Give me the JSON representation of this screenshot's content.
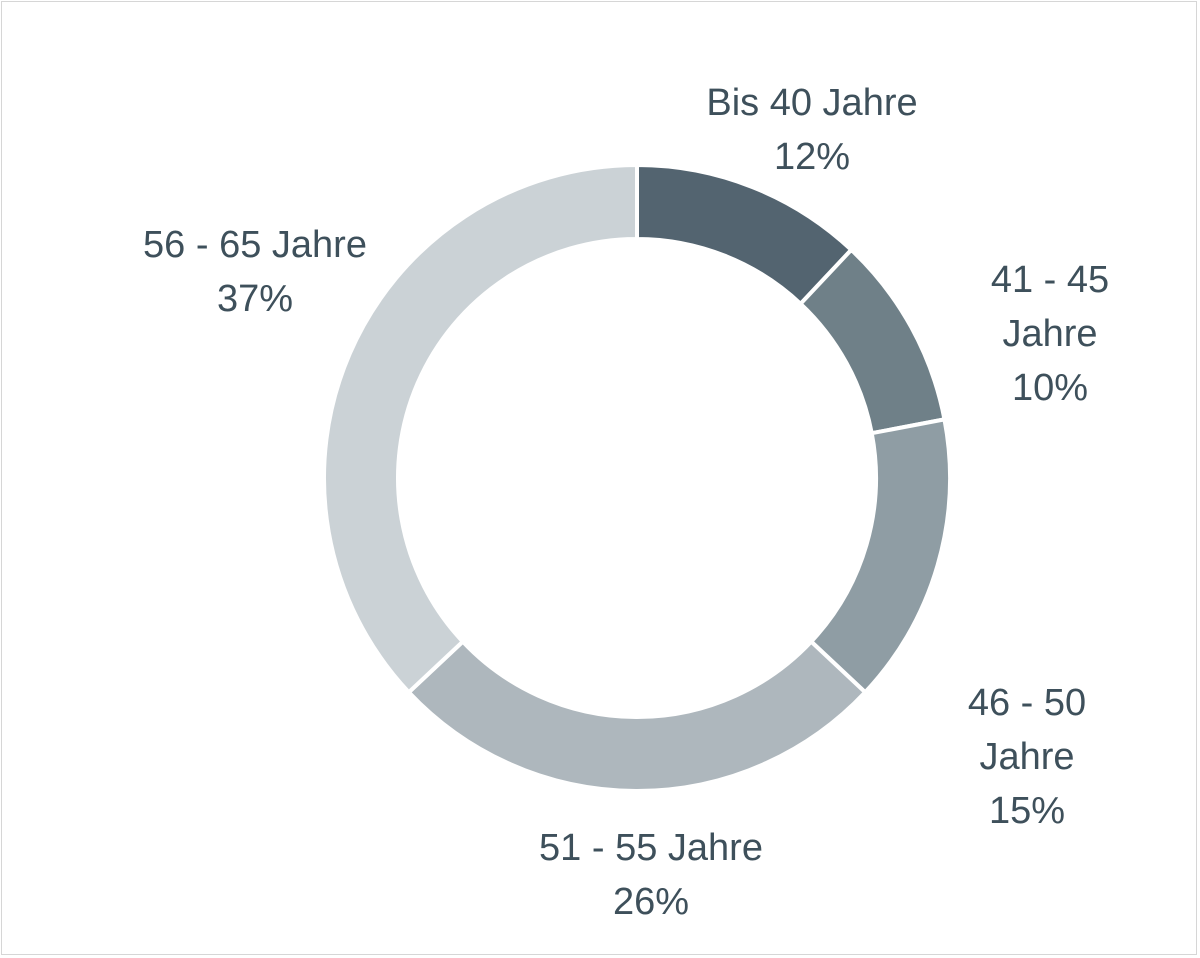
{
  "chart_data": {
    "type": "pie",
    "variant": "donut",
    "title": "",
    "slices": [
      {
        "label": "Bis 40 Jahre",
        "value": 12,
        "display": "12%",
        "color": "#536470"
      },
      {
        "label": "41 - 45 Jahre",
        "value": 10,
        "display": "10%",
        "color": "#6f8088"
      },
      {
        "label": "46 - 50 Jahre",
        "value": 15,
        "display": "15%",
        "color": "#8f9da4"
      },
      {
        "label": "51 - 55 Jahre",
        "value": 26,
        "display": "26%",
        "color": "#aeb7bd"
      },
      {
        "label": "56 - 65 Jahre",
        "value": 37,
        "display": "37%",
        "color": "#cbd2d6"
      }
    ]
  }
}
